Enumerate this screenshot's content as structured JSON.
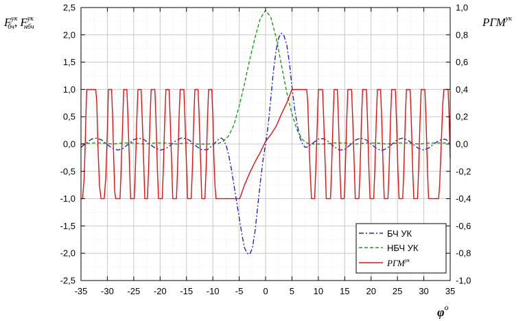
{
  "chart_data": {
    "type": "line",
    "x_axis": {
      "range": [
        -35,
        35
      ],
      "ticks": [
        -35,
        -30,
        -25,
        -20,
        -15,
        -10,
        -5,
        0,
        5,
        10,
        15,
        20,
        25,
        30,
        35
      ],
      "tick_labels": [
        "-35",
        "-30",
        "-25",
        "-20",
        "-15",
        "-10",
        "-5",
        "0",
        "5",
        "10",
        "15",
        "20",
        "25",
        "30",
        "35"
      ],
      "label_main": "φ",
      "label_sup": "o"
    },
    "y_left": {
      "range": [
        -2.5,
        2.5
      ],
      "ticks": [
        -2.5,
        -2.0,
        -1.5,
        -1.0,
        -0.5,
        0.0,
        0.5,
        1.0,
        1.5,
        2.0,
        2.5
      ],
      "tick_labels": [
        "-2,5",
        "-2,0",
        "-1,5",
        "-1,0",
        "-0,5",
        "0,0",
        "0,5",
        "1,0",
        "1,5",
        "2,0",
        "2,5"
      ],
      "label_1_main": "F",
      "label_1_sup": "ук",
      "label_1_sub": "бч",
      "label_sep": ", ",
      "label_2_main": "F",
      "label_2_sup": "ук",
      "label_2_sub": "нбч"
    },
    "y_right": {
      "range": [
        -1.0,
        1.0
      ],
      "ticks": [
        -1.0,
        -0.8,
        -0.6,
        -0.4,
        -0.2,
        0.0,
        0.2,
        0.4,
        0.6,
        0.8,
        1.0
      ],
      "tick_labels": [
        "-1,0",
        "-0,8",
        "-0,6",
        "-0,4",
        "-0,2",
        "0,0",
        "0,2",
        "0,4",
        "0,6",
        "0,8",
        "1,0"
      ],
      "label_main": "РГМ",
      "label_sup": "ук"
    },
    "grid": true,
    "legend_position": "bottom-right",
    "series": [
      {
        "name": "БЧ УК",
        "color": "#1f1fd6",
        "style": "dash-dot",
        "axis": "left",
        "points": [
          [
            -35,
            -0.06
          ],
          [
            -34,
            0.02
          ],
          [
            -33,
            0.09
          ],
          [
            -32,
            0.11
          ],
          [
            -31,
            0.07
          ],
          [
            -30,
            -0.01
          ],
          [
            -29,
            -0.08
          ],
          [
            -28,
            -0.11
          ],
          [
            -27,
            -0.08
          ],
          [
            -26,
            0.0
          ],
          [
            -25,
            0.08
          ],
          [
            -24,
            0.11
          ],
          [
            -23,
            0.08
          ],
          [
            -22,
            0.0
          ],
          [
            -21,
            -0.07
          ],
          [
            -20,
            -0.11
          ],
          [
            -19,
            -0.09
          ],
          [
            -18,
            -0.02
          ],
          [
            -17,
            0.06
          ],
          [
            -16,
            0.11
          ],
          [
            -15,
            0.1
          ],
          [
            -14,
            0.04
          ],
          [
            -13,
            -0.05
          ],
          [
            -12,
            -0.11
          ],
          [
            -11,
            -0.1
          ],
          [
            -10,
            -0.02
          ],
          [
            -9,
            0.08
          ],
          [
            -8.4,
            0.11
          ],
          [
            -8,
            0.08
          ],
          [
            -7.5,
            -0.02
          ],
          [
            -7,
            -0.2
          ],
          [
            -6.5,
            -0.45
          ],
          [
            -6,
            -0.75
          ],
          [
            -5,
            -1.35
          ],
          [
            -4.5,
            -1.65
          ],
          [
            -4,
            -1.9
          ],
          [
            -3.5,
            -2.0
          ],
          [
            -3,
            -2.02
          ],
          [
            -2.5,
            -1.9
          ],
          [
            -2,
            -1.6
          ],
          [
            -1.5,
            -1.15
          ],
          [
            -1,
            -0.7
          ],
          [
            -0.5,
            -0.3
          ],
          [
            0,
            0.0
          ],
          [
            0.5,
            0.35
          ],
          [
            1,
            0.85
          ],
          [
            1.5,
            1.35
          ],
          [
            2,
            1.72
          ],
          [
            2.5,
            1.95
          ],
          [
            3,
            2.03
          ],
          [
            3.5,
            1.98
          ],
          [
            4,
            1.82
          ],
          [
            4.5,
            1.5
          ],
          [
            5,
            1.05
          ],
          [
            5.5,
            0.65
          ],
          [
            6,
            0.35
          ],
          [
            6.5,
            0.12
          ],
          [
            7,
            0.0
          ],
          [
            7.5,
            -0.06
          ],
          [
            8,
            -0.05
          ],
          [
            9,
            0.02
          ],
          [
            10,
            0.09
          ],
          [
            11,
            0.1
          ],
          [
            12,
            0.04
          ],
          [
            13,
            -0.05
          ],
          [
            14,
            -0.11
          ],
          [
            15,
            -0.1
          ],
          [
            16,
            -0.02
          ],
          [
            17,
            0.07
          ],
          [
            18,
            0.11
          ],
          [
            19,
            0.08
          ],
          [
            20,
            0.0
          ],
          [
            21,
            -0.08
          ],
          [
            22,
            -0.12
          ],
          [
            23,
            -0.08
          ],
          [
            24,
            0.0
          ],
          [
            25,
            0.08
          ],
          [
            26,
            0.11
          ],
          [
            27,
            0.07
          ],
          [
            28,
            -0.01
          ],
          [
            29,
            -0.08
          ],
          [
            30,
            -0.11
          ],
          [
            31,
            -0.07
          ],
          [
            32,
            0.01
          ],
          [
            33,
            0.07
          ],
          [
            34,
            0.09
          ],
          [
            35,
            0.04
          ]
        ]
      },
      {
        "name": "НБЧ УК",
        "color": "#159c15",
        "style": "dashed",
        "axis": "left",
        "points": [
          [
            -35,
            0.0
          ],
          [
            -33,
            0.02
          ],
          [
            -31,
            0.02
          ],
          [
            -29,
            0.0
          ],
          [
            -27,
            0.02
          ],
          [
            -25,
            0.02
          ],
          [
            -23,
            0.0
          ],
          [
            -21,
            0.02
          ],
          [
            -19,
            0.02
          ],
          [
            -17,
            0.0
          ],
          [
            -15,
            0.02
          ],
          [
            -13,
            0.0
          ],
          [
            -11,
            0.0
          ],
          [
            -9,
            0.01
          ],
          [
            -8,
            0.05
          ],
          [
            -7,
            0.15
          ],
          [
            -6,
            0.35
          ],
          [
            -5,
            0.7
          ],
          [
            -4,
            1.1
          ],
          [
            -3,
            1.55
          ],
          [
            -2,
            1.95
          ],
          [
            -1,
            2.3
          ],
          [
            0,
            2.45
          ],
          [
            1,
            2.32
          ],
          [
            2,
            1.95
          ],
          [
            3,
            1.45
          ],
          [
            4,
            0.95
          ],
          [
            5,
            0.55
          ],
          [
            6,
            0.25
          ],
          [
            7,
            0.08
          ],
          [
            8,
            0.01
          ],
          [
            9,
            0.0
          ],
          [
            11,
            0.0
          ],
          [
            13,
            0.02
          ],
          [
            15,
            0.02
          ],
          [
            17,
            0.0
          ],
          [
            19,
            0.02
          ],
          [
            21,
            0.02
          ],
          [
            23,
            0.0
          ],
          [
            25,
            0.02
          ],
          [
            27,
            0.02
          ],
          [
            29,
            0.0
          ],
          [
            31,
            0.02
          ],
          [
            33,
            0.02
          ],
          [
            35,
            0.02
          ]
        ]
      },
      {
        "name": "РГМ",
        "legend_sup": "ук",
        "color": "#e01010",
        "style": "solid",
        "axis": "right",
        "points": [
          [
            -35,
            -0.4
          ],
          [
            -34.7,
            -0.4
          ],
          [
            -34.4,
            -0.25
          ],
          [
            -34.2,
            0.0
          ],
          [
            -34.0,
            0.3
          ],
          [
            -33.9,
            0.4
          ],
          [
            -32.2,
            0.4
          ],
          [
            -32.0,
            0.3
          ],
          [
            -31.8,
            0.0
          ],
          [
            -31.5,
            -0.3
          ],
          [
            -31.2,
            -0.4
          ],
          [
            -30.6,
            -0.4
          ],
          [
            -30.3,
            -0.25
          ],
          [
            -30.0,
            0.1
          ],
          [
            -29.8,
            0.4
          ],
          [
            -29.2,
            0.4
          ],
          [
            -29.0,
            0.2
          ],
          [
            -28.8,
            -0.1
          ],
          [
            -28.6,
            -0.35
          ],
          [
            -28.4,
            -0.4
          ],
          [
            -27.6,
            -0.4
          ],
          [
            -27.4,
            -0.2
          ],
          [
            -27.1,
            0.15
          ],
          [
            -26.9,
            0.4
          ],
          [
            -26.3,
            0.4
          ],
          [
            -26.1,
            0.2
          ],
          [
            -25.8,
            -0.15
          ],
          [
            -25.6,
            -0.4
          ],
          [
            -24.9,
            -0.4
          ],
          [
            -24.7,
            -0.2
          ],
          [
            -24.4,
            0.2
          ],
          [
            -24.2,
            0.4
          ],
          [
            -23.6,
            0.4
          ],
          [
            -23.4,
            0.2
          ],
          [
            -23.1,
            -0.15
          ],
          [
            -22.9,
            -0.4
          ],
          [
            -22.4,
            -0.4
          ],
          [
            -22.2,
            -0.2
          ],
          [
            -21.9,
            0.2
          ],
          [
            -21.7,
            0.4
          ],
          [
            -21.0,
            0.4
          ],
          [
            -20.8,
            0.2
          ],
          [
            -20.5,
            -0.2
          ],
          [
            -20.3,
            -0.4
          ],
          [
            -19.6,
            -0.4
          ],
          [
            -19.4,
            -0.2
          ],
          [
            -19.1,
            0.2
          ],
          [
            -18.9,
            0.4
          ],
          [
            -18.3,
            0.4
          ],
          [
            -18.1,
            0.2
          ],
          [
            -17.8,
            -0.15
          ],
          [
            -17.6,
            -0.4
          ],
          [
            -16.9,
            -0.4
          ],
          [
            -16.7,
            -0.2
          ],
          [
            -16.4,
            0.2
          ],
          [
            -16.2,
            0.4
          ],
          [
            -15.5,
            0.4
          ],
          [
            -15.3,
            0.2
          ],
          [
            -15.0,
            -0.15
          ],
          [
            -14.8,
            -0.4
          ],
          [
            -14.1,
            -0.4
          ],
          [
            -13.9,
            -0.2
          ],
          [
            -13.6,
            0.2
          ],
          [
            -13.4,
            0.4
          ],
          [
            -12.8,
            0.4
          ],
          [
            -12.6,
            0.2
          ],
          [
            -12.3,
            -0.15
          ],
          [
            -12.1,
            -0.4
          ],
          [
            -11.5,
            -0.4
          ],
          [
            -11.3,
            -0.2
          ],
          [
            -11.0,
            0.2
          ],
          [
            -10.8,
            0.4
          ],
          [
            -10.2,
            0.4
          ],
          [
            -10.0,
            0.2
          ],
          [
            -9.8,
            -0.1
          ],
          [
            -9.6,
            -0.3
          ],
          [
            -9.4,
            -0.4
          ],
          [
            -5.3,
            -0.4
          ],
          [
            -4.9,
            -0.4
          ],
          [
            -4.0,
            -0.3
          ],
          [
            -3.0,
            -0.21
          ],
          [
            -2.0,
            -0.13
          ],
          [
            -1.0,
            -0.06
          ],
          [
            0.0,
            0.02
          ],
          [
            1.0,
            0.07
          ],
          [
            2.0,
            0.13
          ],
          [
            3.0,
            0.22
          ],
          [
            4.0,
            0.3
          ],
          [
            5.0,
            0.4
          ],
          [
            7.8,
            0.4
          ],
          [
            8.0,
            0.3
          ],
          [
            8.2,
            0.05
          ],
          [
            8.5,
            -0.25
          ],
          [
            8.7,
            -0.4
          ],
          [
            9.3,
            -0.4
          ],
          [
            9.5,
            -0.2
          ],
          [
            9.8,
            0.15
          ],
          [
            10.0,
            0.4
          ],
          [
            10.8,
            0.4
          ],
          [
            11.0,
            0.2
          ],
          [
            11.3,
            -0.15
          ],
          [
            11.5,
            -0.4
          ],
          [
            12.3,
            -0.4
          ],
          [
            12.5,
            -0.2
          ],
          [
            12.8,
            0.2
          ],
          [
            13.0,
            0.4
          ],
          [
            13.6,
            0.4
          ],
          [
            13.8,
            0.2
          ],
          [
            14.1,
            -0.2
          ],
          [
            14.3,
            -0.4
          ],
          [
            14.9,
            -0.4
          ],
          [
            15.1,
            -0.2
          ],
          [
            15.4,
            0.2
          ],
          [
            15.6,
            0.4
          ],
          [
            16.3,
            0.4
          ],
          [
            16.5,
            0.2
          ],
          [
            16.8,
            -0.15
          ],
          [
            17.0,
            -0.4
          ],
          [
            17.7,
            -0.4
          ],
          [
            17.9,
            -0.2
          ],
          [
            18.2,
            0.2
          ],
          [
            18.4,
            0.4
          ],
          [
            19.1,
            0.4
          ],
          [
            19.3,
            0.2
          ],
          [
            19.6,
            -0.2
          ],
          [
            19.8,
            -0.4
          ],
          [
            20.5,
            -0.4
          ],
          [
            20.7,
            -0.2
          ],
          [
            21.0,
            0.2
          ],
          [
            21.2,
            0.4
          ],
          [
            21.8,
            0.4
          ],
          [
            22.0,
            0.2
          ],
          [
            22.3,
            -0.2
          ],
          [
            22.5,
            -0.4
          ],
          [
            23.2,
            -0.4
          ],
          [
            23.4,
            -0.2
          ],
          [
            23.7,
            0.2
          ],
          [
            23.9,
            0.4
          ],
          [
            24.6,
            0.4
          ],
          [
            24.8,
            0.2
          ],
          [
            25.1,
            -0.2
          ],
          [
            25.3,
            -0.4
          ],
          [
            26.0,
            -0.4
          ],
          [
            26.2,
            -0.2
          ],
          [
            26.5,
            0.2
          ],
          [
            26.7,
            0.4
          ],
          [
            27.4,
            0.4
          ],
          [
            27.6,
            0.2
          ],
          [
            27.9,
            -0.2
          ],
          [
            28.1,
            -0.4
          ],
          [
            28.8,
            -0.4
          ],
          [
            29.0,
            -0.2
          ],
          [
            29.3,
            0.2
          ],
          [
            29.5,
            0.4
          ],
          [
            30.2,
            0.4
          ],
          [
            30.4,
            0.2
          ],
          [
            30.7,
            -0.2
          ],
          [
            30.9,
            -0.4
          ],
          [
            32.8,
            -0.4
          ],
          [
            33.0,
            -0.3
          ],
          [
            33.3,
            0.0
          ],
          [
            33.6,
            0.3
          ],
          [
            33.8,
            0.4
          ],
          [
            34.6,
            0.4
          ],
          [
            34.8,
            0.2
          ],
          [
            35.0,
            -0.1
          ]
        ]
      }
    ]
  }
}
